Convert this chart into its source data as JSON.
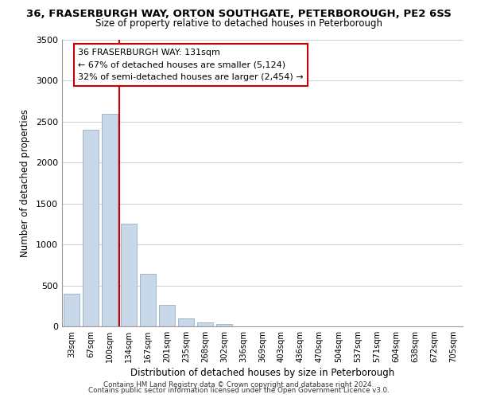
{
  "title_top": "36, FRASERBURGH WAY, ORTON SOUTHGATE, PETERBOROUGH, PE2 6SS",
  "title_sub": "Size of property relative to detached houses in Peterborough",
  "xlabel": "Distribution of detached houses by size in Peterborough",
  "ylabel": "Number of detached properties",
  "bar_labels": [
    "33sqm",
    "67sqm",
    "100sqm",
    "134sqm",
    "167sqm",
    "201sqm",
    "235sqm",
    "268sqm",
    "302sqm",
    "336sqm",
    "369sqm",
    "403sqm",
    "436sqm",
    "470sqm",
    "504sqm",
    "537sqm",
    "571sqm",
    "604sqm",
    "638sqm",
    "672sqm",
    "705sqm"
  ],
  "bar_values": [
    400,
    2400,
    2600,
    1250,
    640,
    260,
    100,
    50,
    30,
    0,
    0,
    0,
    0,
    0,
    0,
    0,
    0,
    0,
    0,
    0,
    0
  ],
  "bar_color": "#c8d8e8",
  "bar_edge_color": "#a0b8cc",
  "vline_color": "#cc0000",
  "vline_pos": 2.5,
  "ylim": [
    0,
    3500
  ],
  "yticks": [
    0,
    500,
    1000,
    1500,
    2000,
    2500,
    3000,
    3500
  ],
  "annotation_title": "36 FRASERBURGH WAY: 131sqm",
  "annotation_line1": "← 67% of detached houses are smaller (5,124)",
  "annotation_line2": "32% of semi-detached houses are larger (2,454) →",
  "footer_line1": "Contains HM Land Registry data © Crown copyright and database right 2024.",
  "footer_line2": "Contains public sector information licensed under the Open Government Licence v3.0.",
  "bg_color": "#ffffff",
  "grid_color": "#c8d0d8"
}
